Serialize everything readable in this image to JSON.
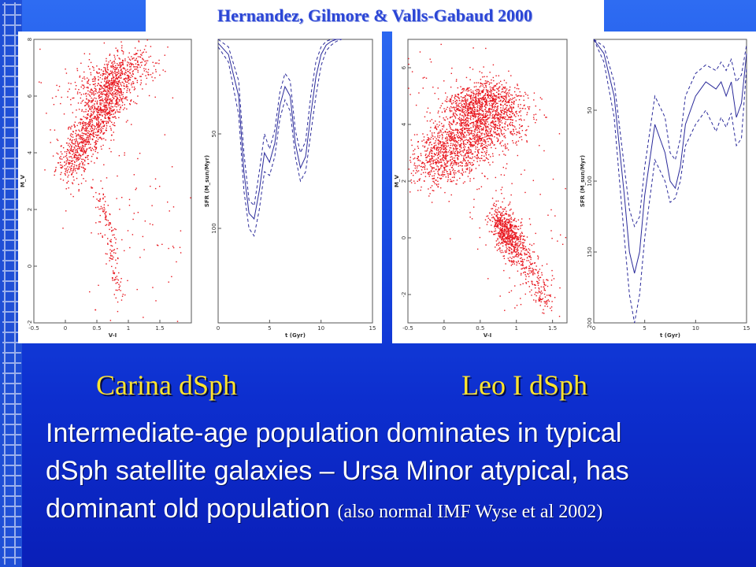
{
  "header": {
    "citation": "Hernandez, Gilmore & Valls-Gabaud 2000"
  },
  "captions": {
    "left": "Carina dSph",
    "right": "Leo I dSph"
  },
  "body": {
    "line1": "Intermediate-age population dominates in typical",
    "line2": "dSph satellite galaxies – Ursa Minor atypical, has",
    "line3_main": "dominant old population",
    "line3_note": "(also normal IMF Wyse et al 2002)"
  },
  "colors": {
    "points": "#e8141c",
    "sfr_line": "#2a2a9a",
    "title": "#2b46d6",
    "caption": "#ffe42e"
  },
  "chart_data": [
    {
      "type": "scatter",
      "name": "carina-cmd",
      "xlabel": "V-I",
      "ylabel": "M_V",
      "xlim": [
        -0.5,
        2
      ],
      "ylim": [
        8,
        -2
      ],
      "xticks": [
        "-0.5",
        "0",
        "0.5",
        "1",
        "1.5"
      ],
      "yticks": [
        "-2",
        "0",
        "2",
        "4",
        "6",
        "8"
      ]
    },
    {
      "type": "line",
      "name": "carina-sfr",
      "xlabel": "t (Gyr)",
      "ylabel": "SFR (M_sun/Myr)",
      "xlim": [
        0,
        15
      ],
      "ylim": [
        0,
        150
      ],
      "xticks": [
        "0",
        "5",
        "10",
        "15"
      ],
      "yticks": [
        "50",
        "100"
      ],
      "x": [
        0,
        1,
        2,
        2.5,
        3,
        3.5,
        4,
        4.5,
        5,
        5.5,
        6,
        6.5,
        7,
        7.5,
        8,
        8.5,
        9,
        9.5,
        10,
        10.5,
        11,
        11.5,
        12
      ],
      "series": [
        {
          "values": [
            2,
            8,
            30,
            70,
            92,
            95,
            80,
            60,
            65,
            55,
            35,
            25,
            30,
            55,
            68,
            62,
            40,
            20,
            8,
            3,
            1,
            0,
            0
          ]
        },
        {
          "values": [
            4,
            12,
            40,
            80,
            100,
            104,
            90,
            70,
            72,
            62,
            42,
            32,
            38,
            62,
            75,
            70,
            50,
            30,
            14,
            6,
            3,
            1,
            0
          ]
        },
        {
          "values": [
            0,
            4,
            22,
            60,
            85,
            88,
            70,
            50,
            58,
            48,
            28,
            18,
            22,
            48,
            60,
            54,
            30,
            12,
            4,
            1,
            0,
            0,
            0
          ]
        }
      ]
    },
    {
      "type": "scatter",
      "name": "leo-cmd",
      "xlabel": "V-I",
      "ylabel": "M_V",
      "xlim": [
        -0.5,
        1.7
      ],
      "ylim": [
        7,
        -3
      ],
      "xticks": [
        "-0.5",
        "0",
        "0.5",
        "1",
        "1.5"
      ],
      "yticks": [
        "-2",
        "0",
        "2",
        "4",
        "6"
      ]
    },
    {
      "type": "line",
      "name": "leo-sfr",
      "xlabel": "t (Gyr)",
      "ylabel": "SFR (M_sun/Myr)",
      "xlim": [
        0,
        15
      ],
      "ylim": [
        0,
        200
      ],
      "xticks": [
        "0",
        "5",
        "10",
        "15"
      ],
      "yticks": [
        "50",
        "100",
        "150",
        "200"
      ],
      "x": [
        0,
        1,
        2,
        3,
        3.5,
        4,
        4.5,
        5,
        6,
        7,
        7.5,
        8,
        8.5,
        9,
        10,
        11,
        12,
        12.5,
        13,
        13.5,
        14,
        14.5,
        15
      ],
      "series": [
        {
          "values": [
            0,
            10,
            40,
            110,
            150,
            165,
            150,
            110,
            60,
            80,
            100,
            105,
            90,
            60,
            40,
            30,
            35,
            30,
            40,
            30,
            55,
            45,
            10
          ]
        },
        {
          "values": [
            0,
            16,
            55,
            140,
            180,
            200,
            180,
            140,
            85,
            100,
            115,
            112,
            100,
            75,
            60,
            50,
            65,
            55,
            62,
            52,
            75,
            70,
            20
          ]
        },
        {
          "values": [
            0,
            5,
            30,
            90,
            120,
            132,
            125,
            90,
            40,
            55,
            80,
            85,
            70,
            40,
            24,
            18,
            22,
            16,
            22,
            14,
            30,
            25,
            4
          ]
        }
      ]
    }
  ]
}
